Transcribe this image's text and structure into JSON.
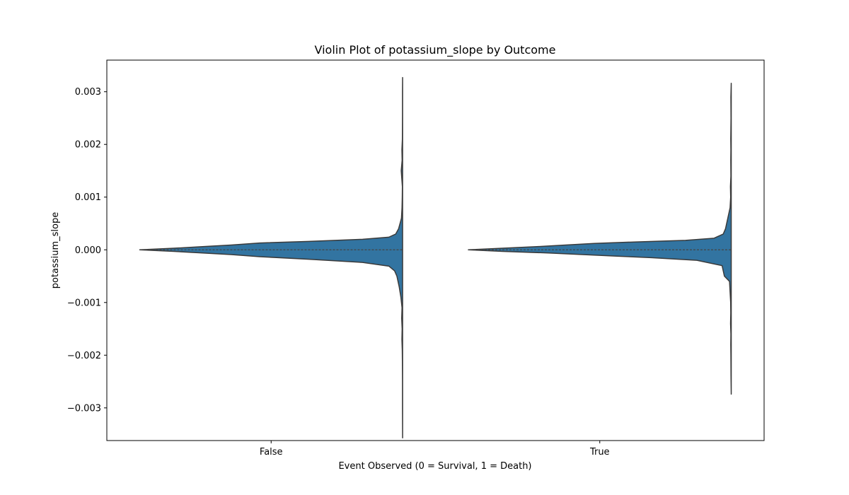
{
  "chart_data": {
    "type": "violin",
    "title": "Violin Plot of potassium_slope by Outcome",
    "xlabel": "Event Observed (0 = Survival, 1 = Death)",
    "ylabel": "potassium_slope",
    "categories": [
      "False",
      "True"
    ],
    "yticks": [
      0.003,
      0.002,
      0.001,
      0.0,
      -0.001,
      -0.002,
      -0.003
    ],
    "ytick_labels": [
      "0.003",
      "0.002",
      "0.001",
      "0.000",
      "−0.001",
      "−0.002",
      "−0.003"
    ],
    "ylim": [
      -0.00362,
      0.0036
    ],
    "grid": false,
    "color": "#3274a1",
    "edge_color": "#3a3a3a",
    "series": [
      {
        "category": "False",
        "min": -0.00357,
        "max": 0.00327,
        "median": 0.0,
        "upper": [
          [
            0.0,
            2.3
          ],
          [
            3e-05,
            2.0
          ],
          [
            6e-05,
            1.75
          ],
          [
            9e-05,
            1.5
          ],
          [
            0.00013,
            1.25
          ],
          [
            0.00016,
            0.82
          ],
          [
            0.0002,
            0.35
          ],
          [
            0.00024,
            0.12
          ],
          [
            0.0003,
            0.06
          ],
          [
            0.0004,
            0.035
          ],
          [
            0.0006,
            0.01
          ],
          [
            0.0008,
            0.005
          ],
          [
            0.001,
            0.003
          ],
          [
            0.0012,
            0.002
          ],
          [
            0.0015,
            0.012
          ],
          [
            0.0017,
            0.004
          ],
          [
            0.0019,
            0.006
          ],
          [
            0.0021,
            0.002
          ],
          [
            0.0026,
            0.001
          ],
          [
            0.003,
            0.001
          ],
          [
            0.00327,
            0.0
          ]
        ],
        "lower": [
          [
            -3e-05,
            2.0
          ],
          [
            -6e-05,
            1.75
          ],
          [
            -9e-05,
            1.5
          ],
          [
            -0.00013,
            1.25
          ],
          [
            -0.00018,
            0.82
          ],
          [
            -0.00024,
            0.35
          ],
          [
            -0.00031,
            0.12
          ],
          [
            -0.0004,
            0.07
          ],
          [
            -0.0005,
            0.05
          ],
          [
            -0.0007,
            0.03
          ],
          [
            -0.0009,
            0.015
          ],
          [
            -0.0011,
            0.005
          ],
          [
            -0.0013,
            0.008
          ],
          [
            -0.0015,
            0.004
          ],
          [
            -0.0017,
            0.006
          ],
          [
            -0.0019,
            0.003
          ],
          [
            -0.0021,
            0.002
          ],
          [
            -0.0025,
            0.001
          ],
          [
            -0.003,
            0.001
          ],
          [
            -0.00357,
            0.0
          ]
        ]
      },
      {
        "category": "True",
        "min": -0.00274,
        "max": 0.00316,
        "median": 0.0,
        "upper": [
          [
            0.0,
            2.3
          ],
          [
            3e-05,
            2.0
          ],
          [
            6e-05,
            1.7
          ],
          [
            9e-05,
            1.45
          ],
          [
            0.00012,
            1.2
          ],
          [
            0.00015,
            0.83
          ],
          [
            0.00018,
            0.4
          ],
          [
            0.00022,
            0.15
          ],
          [
            0.0003,
            0.07
          ],
          [
            0.0004,
            0.05
          ],
          [
            0.0006,
            0.03
          ],
          [
            0.0008,
            0.01
          ],
          [
            0.001,
            0.005
          ],
          [
            0.0012,
            0.007
          ],
          [
            0.0014,
            0.003
          ],
          [
            0.0017,
            0.004
          ],
          [
            0.0019,
            0.003
          ],
          [
            0.0021,
            0.004
          ],
          [
            0.0025,
            0.002
          ],
          [
            0.0029,
            0.003
          ],
          [
            0.00316,
            0.0
          ]
        ],
        "lower": [
          [
            -3e-05,
            2.0
          ],
          [
            -6e-05,
            1.6
          ],
          [
            -9e-05,
            1.3
          ],
          [
            -0.00012,
            1.0
          ],
          [
            -0.00015,
            0.7
          ],
          [
            -0.0002,
            0.3
          ],
          [
            -0.0003,
            0.08
          ],
          [
            -0.0005,
            0.06
          ],
          [
            -0.0006,
            0.015
          ],
          [
            -0.0008,
            0.01
          ],
          [
            -0.001,
            0.005
          ],
          [
            -0.0012,
            0.004
          ],
          [
            -0.0014,
            0.006
          ],
          [
            -0.0016,
            0.003
          ],
          [
            -0.0018,
            0.004
          ],
          [
            -0.002,
            0.003
          ],
          [
            -0.0024,
            0.002
          ],
          [
            -0.00274,
            0.0
          ]
        ]
      }
    ]
  }
}
